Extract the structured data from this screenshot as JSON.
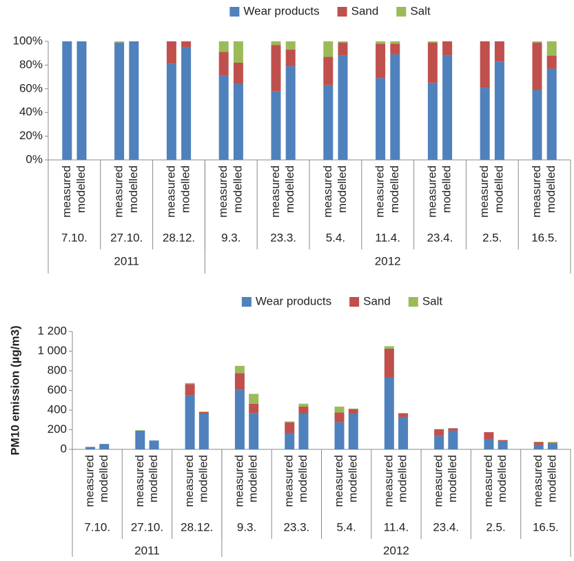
{
  "chart_data": [
    {
      "type": "bar",
      "stacked": true,
      "categories": [
        "measured",
        "modelled",
        "measured",
        "modelled",
        "measured",
        "modelled",
        "measured",
        "modelled",
        "measured",
        "modelled",
        "measured",
        "modelled",
        "measured",
        "modelled",
        "measured",
        "modelled",
        "measured",
        "modelled",
        "measured",
        "modelled"
      ],
      "groups": [
        {
          "label": "2011",
          "dates": [
            "7.10.",
            "27.10.",
            "28.12."
          ]
        },
        {
          "label": "2012",
          "dates": [
            "9.3.",
            "23.3.",
            "5.4.",
            "11.4.",
            "23.4.",
            "2.5.",
            "16.5."
          ]
        }
      ],
      "series": [
        {
          "name": "Wear products",
          "color": "#4f81bd",
          "values": [
            100,
            100,
            99,
            100,
            81,
            95,
            71,
            64,
            58,
            79,
            63,
            88,
            69,
            89,
            65,
            88,
            61,
            83,
            59,
            77
          ]
        },
        {
          "name": "Sand",
          "color": "#c0504d",
          "values": [
            0,
            0,
            0,
            0,
            19,
            5,
            20,
            18,
            39,
            14,
            24,
            11,
            29,
            9,
            34,
            12,
            39,
            17,
            40,
            11
          ]
        },
        {
          "name": "Salt",
          "color": "#9bbb59",
          "values": [
            0,
            0,
            1,
            0,
            0,
            0,
            9,
            18,
            3,
            7,
            13,
            1,
            2,
            2,
            1,
            0,
            0,
            0,
            1,
            12
          ]
        }
      ],
      "ylim": [
        0,
        100
      ],
      "yticks": [
        {
          "value": 0,
          "label": "0%"
        },
        {
          "value": 20,
          "label": "20%"
        },
        {
          "value": 40,
          "label": "40%"
        },
        {
          "value": 60,
          "label": "60%"
        },
        {
          "value": 80,
          "label": "80%"
        },
        {
          "value": 100,
          "label": "100%"
        }
      ]
    },
    {
      "type": "bar",
      "stacked": true,
      "y_label": "PM10 emission (µg/m3)",
      "categories": [
        "measured",
        "modelled",
        "measured",
        "modelled",
        "measured",
        "modelled",
        "measured",
        "modelled",
        "measured",
        "modelled",
        "measured",
        "modelled",
        "measured",
        "modelled",
        "measured",
        "modelled",
        "measured",
        "modelled",
        "measured",
        "modelled"
      ],
      "groups": [
        {
          "label": "2011",
          "dates": [
            "7.10.",
            "27.10.",
            "28.12."
          ]
        },
        {
          "label": "2012",
          "dates": [
            "9.3.",
            "23.3.",
            "5.4.",
            "11.4.",
            "23.4.",
            "2.5.",
            "16.5."
          ]
        }
      ],
      "series": [
        {
          "name": "Wear products",
          "color": "#4f81bd",
          "values": [
            25,
            55,
            190,
            90,
            550,
            365,
            605,
            370,
            165,
            365,
            275,
            365,
            730,
            330,
            135,
            190,
            105,
            80,
            45,
            60
          ]
        },
        {
          "name": "Sand",
          "color": "#c0504d",
          "values": [
            0,
            0,
            0,
            0,
            115,
            15,
            170,
            95,
            110,
            70,
            100,
            45,
            295,
            35,
            70,
            25,
            70,
            15,
            30,
            8
          ]
        },
        {
          "name": "Salt",
          "color": "#9bbb59",
          "values": [
            0,
            0,
            5,
            0,
            10,
            5,
            75,
            100,
            10,
            30,
            60,
            5,
            25,
            5,
            2,
            0,
            0,
            0,
            2,
            8
          ]
        }
      ],
      "ylim": [
        0,
        1200
      ],
      "yticks": [
        0,
        200,
        400,
        600,
        800,
        {
          "value": 1000,
          "label": "1 000"
        },
        {
          "value": 1200,
          "label": "1 200"
        }
      ]
    }
  ]
}
